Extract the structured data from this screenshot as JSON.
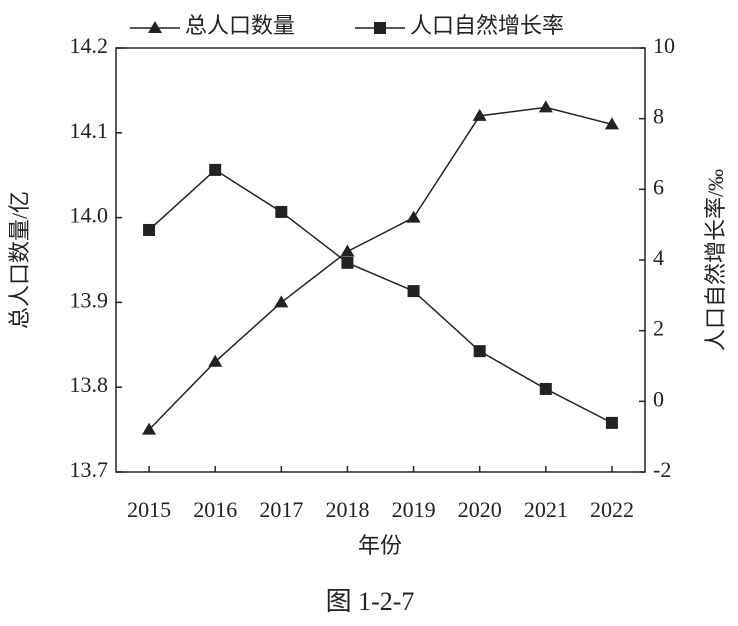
{
  "chart_data": {
    "type": "line",
    "x_label": "年份",
    "y_label": "总人口数量/亿",
    "y2_label": "人口自然增长率/‰",
    "categories": [
      "2015",
      "2016",
      "2017",
      "2018",
      "2019",
      "2020",
      "2021",
      "2022"
    ],
    "series": [
      {
        "name": "总人口数量",
        "color": "#222222",
        "marker": "triangle",
        "axis": "y",
        "values": [
          13.75,
          13.83,
          13.9,
          13.96,
          14.0,
          14.12,
          14.13,
          14.11
        ]
      },
      {
        "name": "人口自然增长率",
        "color": "#222222",
        "marker": "square",
        "axis": "y2",
        "values": [
          4.85,
          6.55,
          5.36,
          3.92,
          3.12,
          1.42,
          0.35,
          -0.61
        ]
      }
    ],
    "ylim": [
      13.7,
      14.2
    ],
    "yticks": [
      13.7,
      13.8,
      13.9,
      {
        "value": 14,
        "label": "14.0"
      },
      14.1,
      14.2
    ],
    "y2lim": [
      -2,
      10
    ],
    "y2ticks": [
      -2,
      0,
      2,
      4,
      6,
      8,
      10
    ],
    "legend": "top"
  },
  "caption": "图 1-2-7"
}
